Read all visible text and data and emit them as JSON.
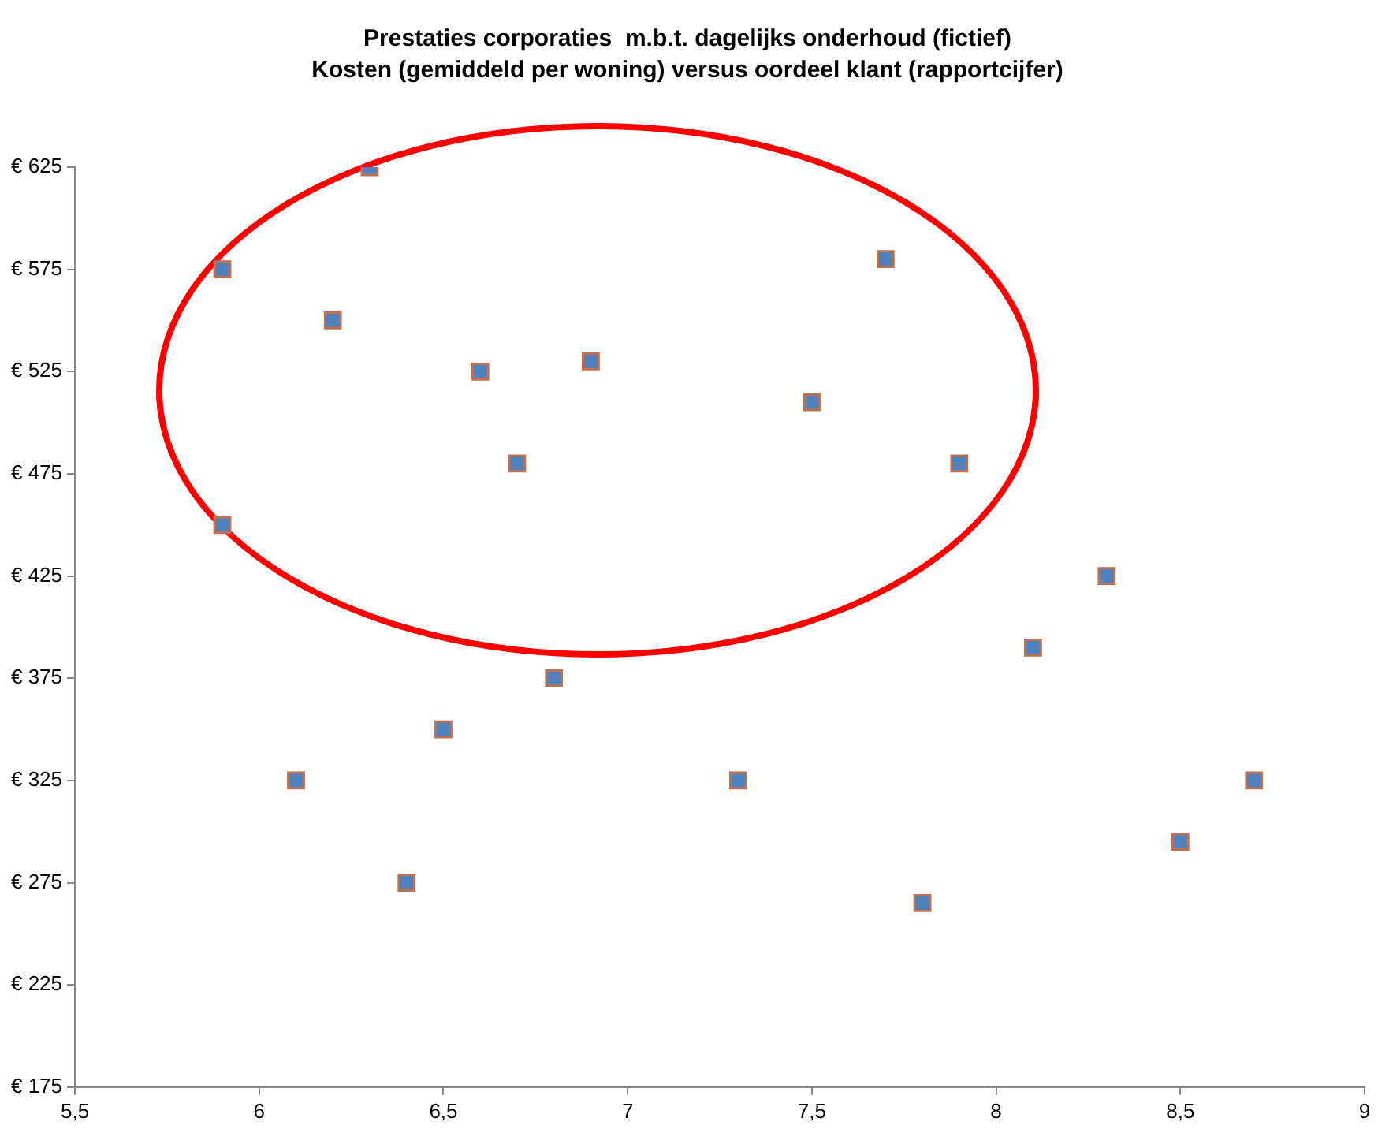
{
  "chart_data": {
    "type": "scatter",
    "title": "Prestaties corporaties  m.b.t. dagelijks onderhoud (fictief)",
    "subtitle": "Kosten (gemiddeld per woning) versus oordeel klant (rapportcijfer)",
    "x": [
      5.9,
      6.3,
      6.2,
      6.6,
      6.9,
      6.7,
      5.9,
      7.5,
      7.7,
      7.9,
      8.3,
      8.1,
      6.8,
      6.5,
      6.1,
      7.3,
      8.7,
      8.5,
      6.4,
      7.8
    ],
    "values": [
      575,
      625,
      550,
      525,
      530,
      480,
      450,
      510,
      580,
      480,
      425,
      390,
      375,
      350,
      325,
      325,
      325,
      295,
      275,
      265
    ],
    "color": "#4f81bd",
    "marker": "square",
    "xlim": [
      5.5,
      9
    ],
    "xticks": [
      {
        "value": 5.5,
        "label": "5,5"
      },
      6,
      {
        "value": 6.5,
        "label": "6,5"
      },
      7,
      {
        "value": 7.5,
        "label": "7,5"
      },
      8,
      {
        "value": 8.5,
        "label": "8,5"
      },
      9
    ],
    "ylim": [
      175,
      625
    ],
    "yticks": [
      {
        "value": 175,
        "label": "€ 175"
      },
      {
        "value": 225,
        "label": "€ 225"
      },
      {
        "value": 275,
        "label": "€ 275"
      },
      {
        "value": 325,
        "label": "€ 325"
      },
      {
        "value": 375,
        "label": "€ 375"
      },
      {
        "value": 425,
        "label": "€ 425"
      },
      {
        "value": 475,
        "label": "€ 475"
      },
      {
        "value": 525,
        "label": "€ 525"
      },
      {
        "value": 575,
        "label": "€ 575"
      },
      {
        "value": 625,
        "label": "€ 625"
      }
    ],
    "grid": false,
    "legend": false
  }
}
